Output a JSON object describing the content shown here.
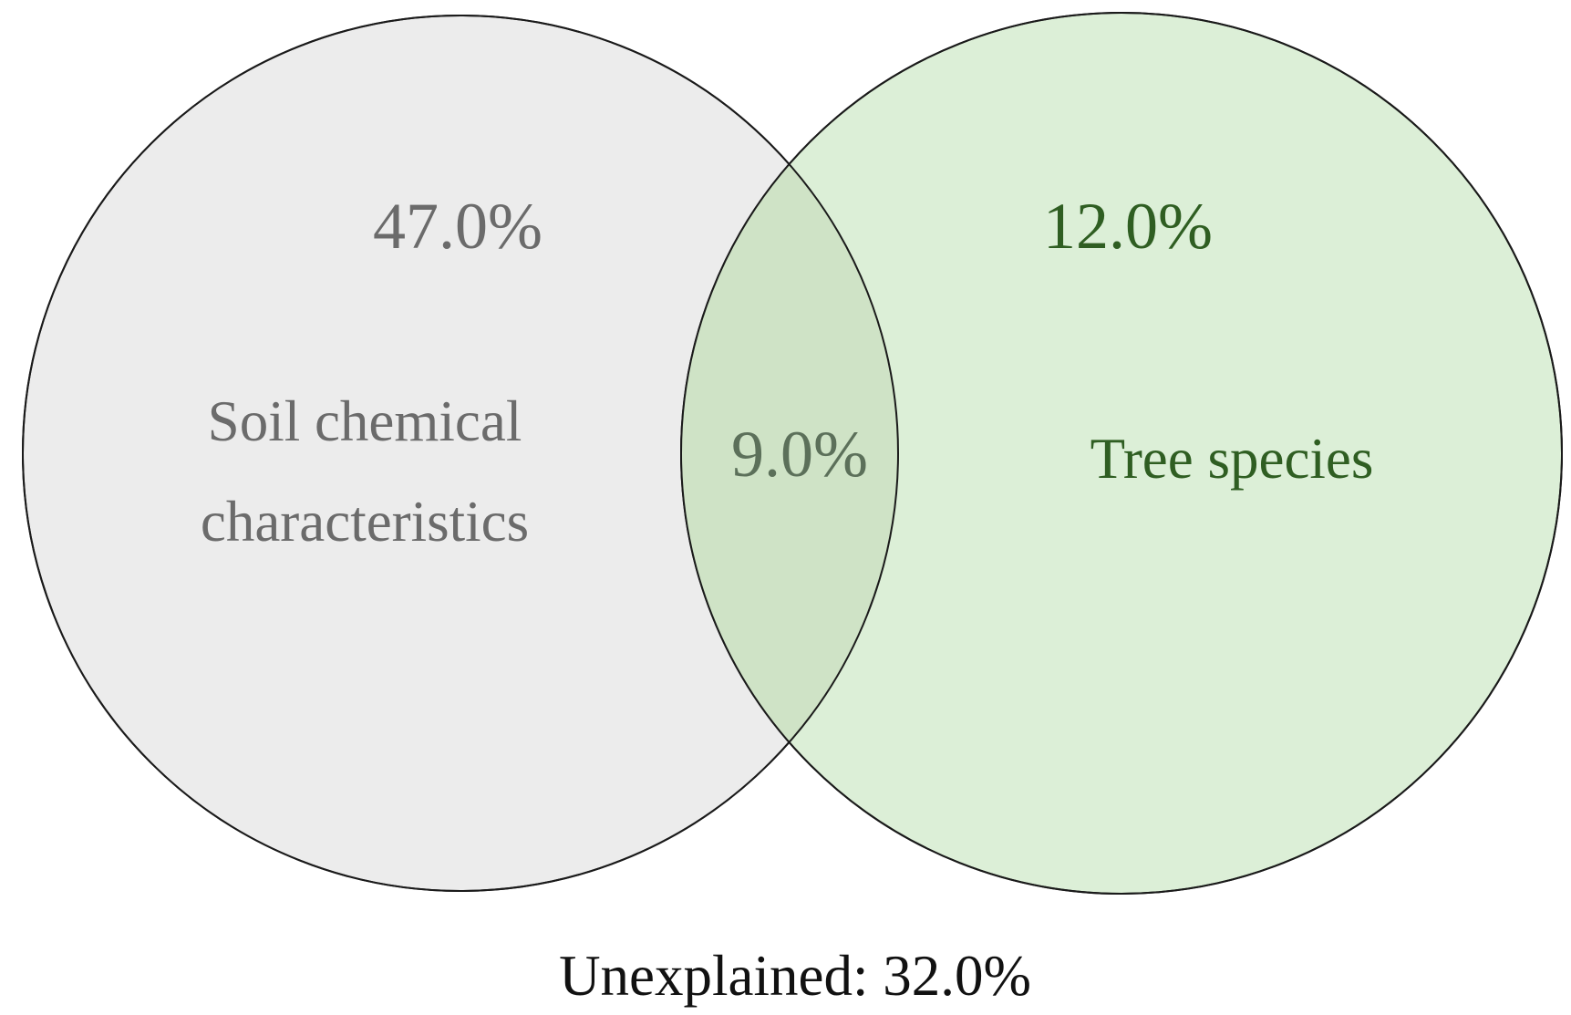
{
  "diagram": {
    "sets": [
      {
        "id": "soil",
        "label_line1": "Soil chemical",
        "label_line2": "characteristics",
        "unique_value": "47.0%",
        "fill": "#ececec",
        "text_color": "#6b6b6b"
      },
      {
        "id": "tree",
        "label": "Tree species",
        "unique_value": "12.0%",
        "fill": "#dcefd7",
        "text_color": "#2f5e22"
      }
    ],
    "overlap_value": "9.0%",
    "overlap_fill": "#cfe3c6",
    "overlap_text_color": "#5c705a",
    "outline_color": "#1a1a1a",
    "unexplained": "Unexplained: 32.0%",
    "unexplained_color": "#111111"
  }
}
